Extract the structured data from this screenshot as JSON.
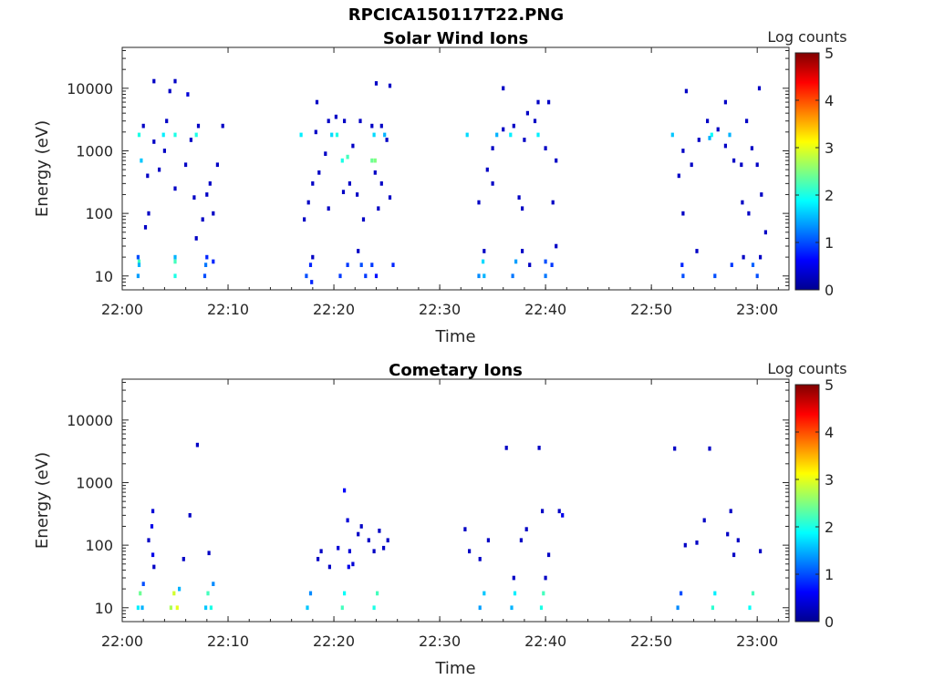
{
  "figure_title": "RPCICA150117T22.PNG",
  "colors": {
    "jet": [
      "#00008f",
      "#0000ff",
      "#0080ff",
      "#00ffff",
      "#80ff80",
      "#ffff00",
      "#ff8000",
      "#ff0000",
      "#800000"
    ]
  },
  "chart_data": [
    {
      "type": "heatmap",
      "title": "Solar Wind Ions",
      "xlabel": "Time",
      "ylabel": "Energy (eV)",
      "x_ticks": [
        "22:00",
        "22:10",
        "22:20",
        "22:30",
        "22:40",
        "22:50",
        "23:00"
      ],
      "x_tick_minutes": [
        0,
        10,
        20,
        30,
        40,
        50,
        60
      ],
      "xlim_minutes": [
        0,
        63
      ],
      "yscale": "log",
      "y_ticks": [
        "10",
        "100",
        "1000",
        "10000"
      ],
      "y_tick_values": [
        10,
        100,
        1000,
        10000
      ],
      "ylim": [
        6,
        45000
      ],
      "colorbar": {
        "label": "Log counts",
        "range": [
          0,
          5
        ],
        "ticks": [
          "0",
          "1",
          "2",
          "3",
          "4",
          "5"
        ]
      },
      "cells": [
        [
          1.6,
          17,
          2.2
        ],
        [
          1.6,
          1800,
          2.0
        ],
        [
          1.8,
          700,
          1.6
        ],
        [
          3.9,
          1800,
          1.8
        ],
        [
          5.0,
          1800,
          2.0
        ],
        [
          7.0,
          1800,
          2.0
        ],
        [
          1.5,
          10,
          1.4
        ],
        [
          1.5,
          20,
          1.0
        ],
        [
          1.6,
          15,
          1.5
        ],
        [
          5.0,
          10,
          2.0
        ],
        [
          5.0,
          17,
          2.2
        ],
        [
          5.0,
          20,
          1.5
        ],
        [
          7.8,
          10,
          1.0
        ],
        [
          7.9,
          15,
          1.2
        ],
        [
          8.0,
          20,
          0.8
        ],
        [
          8.6,
          17,
          0.8
        ],
        [
          2.4,
          400,
          0.3
        ],
        [
          2.0,
          2500,
          0.3
        ],
        [
          3.0,
          1400,
          0.3
        ],
        [
          4.2,
          3000,
          0.3
        ],
        [
          6.0,
          600,
          0.3
        ],
        [
          6.2,
          8000,
          0.4
        ],
        [
          5.0,
          13000,
          0.3
        ],
        [
          3.0,
          13000,
          0.3
        ],
        [
          4.5,
          9000,
          0.3
        ],
        [
          2.5,
          100,
          0.3
        ],
        [
          2.2,
          60,
          0.3
        ],
        [
          5.0,
          250,
          0.3
        ],
        [
          6.8,
          180,
          0.3
        ],
        [
          8.3,
          300,
          0.3
        ],
        [
          9.0,
          600,
          0.3
        ],
        [
          7.6,
          80,
          0.3
        ],
        [
          3.5,
          500,
          0.3
        ],
        [
          4.0,
          1000,
          0.3
        ],
        [
          6.5,
          1500,
          0.3
        ],
        [
          7.2,
          2500,
          0.3
        ],
        [
          9.5,
          2500,
          0.3
        ],
        [
          8.0,
          200,
          0.3
        ],
        [
          8.6,
          100,
          0.3
        ],
        [
          7.0,
          40,
          0.3
        ],
        [
          16.9,
          1800,
          1.8
        ],
        [
          19.8,
          1800,
          1.7
        ],
        [
          20.3,
          1800,
          2.0
        ],
        [
          20.8,
          700,
          2.0
        ],
        [
          21.3,
          800,
          2.2
        ],
        [
          23.6,
          700,
          2.4
        ],
        [
          23.9,
          700,
          2.5
        ],
        [
          23.8,
          1800,
          1.7
        ],
        [
          24.8,
          1800,
          1.5
        ],
        [
          17.4,
          10,
          1.0
        ],
        [
          17.8,
          15,
          0.8
        ],
        [
          17.9,
          8,
          0.8
        ],
        [
          20.6,
          10,
          0.9
        ],
        [
          21.3,
          15,
          0.9
        ],
        [
          22.6,
          15,
          1.0
        ],
        [
          23.0,
          10,
          0.9
        ],
        [
          23.6,
          15,
          0.9
        ],
        [
          24.0,
          10,
          0.7
        ],
        [
          25.6,
          15,
          0.8
        ],
        [
          18.0,
          20,
          0.3
        ],
        [
          22.3,
          25,
          0.3
        ],
        [
          17.2,
          80,
          0.3
        ],
        [
          17.6,
          150,
          0.3
        ],
        [
          18.0,
          300,
          0.3
        ],
        [
          18.6,
          450,
          0.3
        ],
        [
          19.2,
          900,
          0.3
        ],
        [
          18.3,
          2000,
          0.3
        ],
        [
          19.5,
          3000,
          0.3
        ],
        [
          20.2,
          3500,
          0.3
        ],
        [
          21.0,
          3000,
          0.3
        ],
        [
          21.8,
          1200,
          0.3
        ],
        [
          22.5,
          3000,
          0.3
        ],
        [
          23.6,
          2500,
          0.3
        ],
        [
          24.5,
          2500,
          0.3
        ],
        [
          25.0,
          1500,
          0.3
        ],
        [
          24.0,
          12000,
          0.3
        ],
        [
          25.3,
          11000,
          0.3
        ],
        [
          18.4,
          6000,
          0.3
        ],
        [
          19.5,
          120,
          0.3
        ],
        [
          20.9,
          220,
          0.3
        ],
        [
          21.5,
          300,
          0.3
        ],
        [
          22.2,
          200,
          0.3
        ],
        [
          22.8,
          80,
          0.3
        ],
        [
          24.5,
          300,
          0.3
        ],
        [
          25.3,
          180,
          0.3
        ],
        [
          23.9,
          450,
          0.3
        ],
        [
          24.2,
          120,
          0.3
        ],
        [
          32.6,
          1800,
          1.7
        ],
        [
          35.4,
          1800,
          1.5
        ],
        [
          36.7,
          1800,
          1.8
        ],
        [
          39.3,
          1800,
          1.8
        ],
        [
          33.7,
          10,
          1.3
        ],
        [
          34.1,
          17,
          1.7
        ],
        [
          34.2,
          10,
          1.5
        ],
        [
          36.9,
          10,
          1.2
        ],
        [
          37.2,
          17,
          1.4
        ],
        [
          40.0,
          10,
          1.2
        ],
        [
          40.0,
          17,
          1.0
        ],
        [
          40.6,
          15,
          0.9
        ],
        [
          38.5,
          15,
          0.3
        ],
        [
          37.8,
          25,
          0.3
        ],
        [
          34.2,
          25,
          0.3
        ],
        [
          33.7,
          150,
          0.3
        ],
        [
          34.5,
          500,
          0.3
        ],
        [
          35.0,
          1100,
          0.3
        ],
        [
          36.0,
          2200,
          0.3
        ],
        [
          37.0,
          2500,
          0.3
        ],
        [
          38.0,
          1500,
          0.3
        ],
        [
          39.0,
          3000,
          0.3
        ],
        [
          40.0,
          1100,
          0.3
        ],
        [
          40.3,
          6000,
          0.3
        ],
        [
          41.0,
          700,
          0.3
        ],
        [
          36.0,
          10000,
          0.3
        ],
        [
          38.3,
          4000,
          0.3
        ],
        [
          39.3,
          6000,
          0.3
        ],
        [
          37.5,
          180,
          0.3
        ],
        [
          37.8,
          120,
          0.3
        ],
        [
          40.7,
          150,
          0.3
        ],
        [
          41.0,
          30,
          0.3
        ],
        [
          35.0,
          300,
          0.3
        ],
        [
          52.0,
          1800,
          1.6
        ],
        [
          55.7,
          1800,
          1.9
        ],
        [
          55.5,
          1600,
          1.5
        ],
        [
          57.4,
          1800,
          1.5
        ],
        [
          53.0,
          10,
          1.0
        ],
        [
          52.9,
          15,
          0.8
        ],
        [
          56.0,
          10,
          1.0
        ],
        [
          57.6,
          15,
          0.9
        ],
        [
          59.6,
          15,
          1.1
        ],
        [
          60.0,
          10,
          1.0
        ],
        [
          58.7,
          20,
          0.3
        ],
        [
          60.3,
          20,
          0.3
        ],
        [
          54.3,
          25,
          0.3
        ],
        [
          52.6,
          400,
          0.3
        ],
        [
          53.0,
          1000,
          0.3
        ],
        [
          53.8,
          600,
          0.3
        ],
        [
          54.5,
          1500,
          0.3
        ],
        [
          55.3,
          3000,
          0.3
        ],
        [
          56.3,
          2200,
          0.3
        ],
        [
          57.0,
          1200,
          0.3
        ],
        [
          57.8,
          700,
          0.3
        ],
        [
          58.5,
          600,
          0.3
        ],
        [
          59.0,
          3000,
          0.3
        ],
        [
          59.5,
          1100,
          0.3
        ],
        [
          60.0,
          600,
          0.3
        ],
        [
          60.2,
          10000,
          0.3
        ],
        [
          57.0,
          6000,
          0.3
        ],
        [
          53.3,
          9000,
          0.3
        ],
        [
          60.4,
          200,
          0.3
        ],
        [
          58.6,
          150,
          0.3
        ],
        [
          53.0,
          100,
          0.3
        ],
        [
          60.8,
          50,
          0.3
        ],
        [
          59.2,
          100,
          0.3
        ]
      ]
    },
    {
      "type": "heatmap",
      "title": "Cometary Ions",
      "xlabel": "Time",
      "ylabel": "Energy (eV)",
      "x_ticks": [
        "22:00",
        "22:10",
        "22:20",
        "22:30",
        "22:40",
        "22:50",
        "23:00"
      ],
      "x_tick_minutes": [
        0,
        10,
        20,
        30,
        40,
        50,
        60
      ],
      "xlim_minutes": [
        0,
        63
      ],
      "yscale": "log",
      "y_ticks": [
        "10",
        "100",
        "1000",
        "10000"
      ],
      "y_tick_values": [
        10,
        100,
        1000,
        10000
      ],
      "ylim": [
        6,
        45000
      ],
      "colorbar": {
        "label": "Log counts",
        "range": [
          0,
          5
        ],
        "ticks": [
          "0",
          "1",
          "2",
          "3",
          "4",
          "5"
        ]
      },
      "cells": [
        [
          1.5,
          10,
          1.8
        ],
        [
          1.7,
          17,
          2.4
        ],
        [
          1.9,
          10,
          1.5
        ],
        [
          2.0,
          24,
          1.0
        ],
        [
          4.6,
          10,
          2.7
        ],
        [
          4.9,
          17,
          2.9
        ],
        [
          5.2,
          10,
          3.0
        ],
        [
          5.4,
          20,
          1.5
        ],
        [
          7.9,
          10,
          1.6
        ],
        [
          8.1,
          17,
          2.2
        ],
        [
          8.4,
          10,
          2.0
        ],
        [
          8.6,
          24,
          1.3
        ],
        [
          2.8,
          200,
          0.5
        ],
        [
          2.9,
          350,
          0.4
        ],
        [
          2.5,
          120,
          0.3
        ],
        [
          3.0,
          45,
          0.3
        ],
        [
          6.4,
          300,
          0.3
        ],
        [
          7.1,
          4000,
          0.3
        ],
        [
          5.8,
          60,
          0.3
        ],
        [
          8.2,
          75,
          0.3
        ],
        [
          2.9,
          70,
          0.5
        ],
        [
          17.5,
          10,
          1.6
        ],
        [
          17.8,
          17,
          1.3
        ],
        [
          20.8,
          10,
          2.2
        ],
        [
          21.0,
          17,
          1.9
        ],
        [
          23.8,
          10,
          2.0
        ],
        [
          24.1,
          17,
          2.2
        ],
        [
          21.0,
          750,
          0.6
        ],
        [
          18.8,
          80,
          0.3
        ],
        [
          19.6,
          45,
          0.3
        ],
        [
          20.4,
          90,
          0.4
        ],
        [
          21.3,
          250,
          0.4
        ],
        [
          21.5,
          80,
          0.4
        ],
        [
          21.8,
          50,
          0.4
        ],
        [
          22.3,
          150,
          0.3
        ],
        [
          23.3,
          120,
          0.3
        ],
        [
          23.8,
          80,
          0.3
        ],
        [
          24.3,
          170,
          0.3
        ],
        [
          24.7,
          90,
          0.3
        ],
        [
          25.1,
          120,
          0.3
        ],
        [
          22.6,
          200,
          0.3
        ],
        [
          21.4,
          45,
          0.5
        ],
        [
          18.5,
          60,
          0.3
        ],
        [
          32.4,
          180,
          0.3
        ],
        [
          32.8,
          80,
          0.3
        ],
        [
          33.8,
          60,
          0.3
        ],
        [
          34.6,
          120,
          0.3
        ],
        [
          33.8,
          10,
          1.4
        ],
        [
          34.2,
          17,
          1.6
        ],
        [
          36.8,
          10,
          1.5
        ],
        [
          37.1,
          17,
          1.8
        ],
        [
          39.6,
          10,
          2.0
        ],
        [
          39.8,
          17,
          2.2
        ],
        [
          41.6,
          300,
          0.5
        ],
        [
          41.3,
          350,
          0.3
        ],
        [
          39.7,
          350,
          0.3
        ],
        [
          36.3,
          3600,
          0.3
        ],
        [
          39.4,
          3600,
          0.3
        ],
        [
          37.7,
          120,
          0.3
        ],
        [
          40.3,
          70,
          0.3
        ],
        [
          38.2,
          180,
          0.3
        ],
        [
          37.0,
          30,
          0.3
        ],
        [
          40.0,
          30,
          0.3
        ],
        [
          52.5,
          10,
          1.3
        ],
        [
          52.8,
          17,
          1.0
        ],
        [
          55.8,
          10,
          2.1
        ],
        [
          56.0,
          17,
          1.8
        ],
        [
          59.3,
          10,
          1.9
        ],
        [
          59.6,
          17,
          2.2
        ],
        [
          52.2,
          3500,
          0.3
        ],
        [
          55.5,
          3500,
          0.3
        ],
        [
          57.5,
          350,
          0.3
        ],
        [
          57.2,
          150,
          0.3
        ],
        [
          58.2,
          120,
          0.3
        ],
        [
          54.3,
          110,
          0.3
        ],
        [
          53.2,
          100,
          0.3
        ],
        [
          57.8,
          70,
          0.3
        ],
        [
          60.3,
          80,
          0.3
        ],
        [
          55.0,
          250,
          0.3
        ]
      ]
    }
  ]
}
